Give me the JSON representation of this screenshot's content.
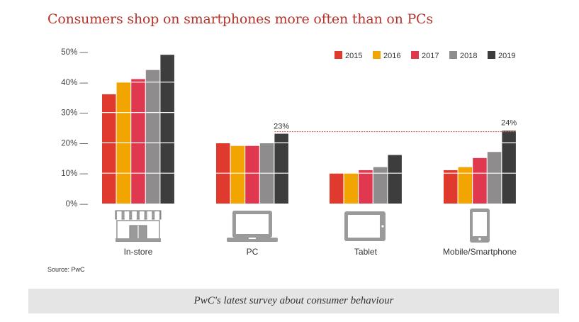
{
  "chart_data": {
    "type": "bar",
    "title": "Consumers shop on smartphones more often than on PCs",
    "xlabel": "",
    "ylabel": "",
    "ylim": [
      0,
      50
    ],
    "yticks": [
      0,
      10,
      20,
      30,
      40,
      50
    ],
    "ytick_labels": [
      "0% —",
      "10% —",
      "20% —",
      "30% —",
      "40% —",
      "50% —"
    ],
    "grid": false,
    "legend_position": "top-right",
    "categories": [
      "In-store",
      "PC",
      "Tablet",
      "Mobile/Smartphone"
    ],
    "category_icons": [
      "store-icon",
      "laptop-icon",
      "tablet-icon",
      "smartphone-icon"
    ],
    "series": [
      {
        "name": "2015",
        "color": "#e03a2e",
        "values": [
          36,
          20,
          10,
          11
        ]
      },
      {
        "name": "2016",
        "color": "#f2a500",
        "values": [
          40,
          19,
          10,
          12
        ]
      },
      {
        "name": "2017",
        "color": "#e0394f",
        "values": [
          41,
          19,
          11,
          15
        ]
      },
      {
        "name": "2018",
        "color": "#8e8c8d",
        "values": [
          44,
          20,
          12,
          17
        ]
      },
      {
        "name": "2019",
        "color": "#3d3d3d",
        "values": [
          49,
          23,
          16,
          24
        ]
      }
    ],
    "annotations": [
      {
        "category": "PC",
        "series": "2019",
        "label": "23%"
      },
      {
        "category": "Mobile/Smartphone",
        "series": "2019",
        "label": "24%"
      }
    ],
    "reference_line": {
      "from": "PC 2019",
      "to": "Mobile/Smartphone 2019",
      "style": "dotted",
      "color": "#d9614d"
    }
  },
  "source": "Source: PwC",
  "caption": "PwC's latest survey about consumer behaviour"
}
